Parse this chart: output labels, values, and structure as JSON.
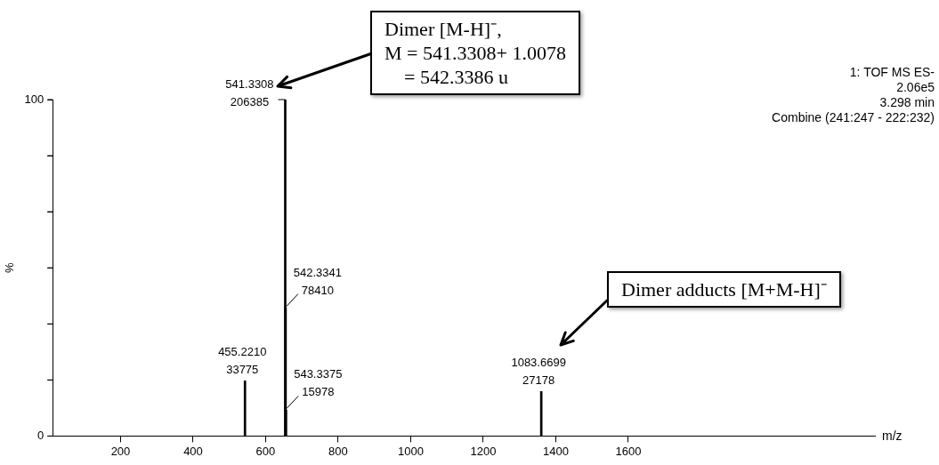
{
  "chart_data": {
    "type": "bar",
    "xlabel": "m/z",
    "ylabel": "%",
    "x": [
      543,
      654,
      655,
      656,
      1360
    ],
    "values": [
      16.4,
      100,
      38.0,
      7.7,
      13.2
    ],
    "color": "#000000",
    "xlim": [
      13,
      2280
    ],
    "xticks": [
      200,
      400,
      600,
      800,
      1000,
      1200,
      1400,
      1600
    ],
    "ylim": [
      0,
      100
    ],
    "yticks": [
      0,
      {
        "value": 16.67,
        "label": null
      },
      {
        "value": 33.33,
        "label": null
      },
      {
        "value": 50,
        "label": null
      },
      {
        "value": 66.67,
        "label": null
      },
      {
        "value": 83.33,
        "label": null
      },
      100
    ],
    "grid": false,
    "legend": false,
    "annotations": [
      "Dimer [M-H]⁻,\nM = 541.3308+ 1.0078\n    = 542.3386 u",
      "Dimer adducts [M+M-H]⁻",
      "1: TOF MS ES-\n2.06e5\n3.298 min\nCombine (241:247 - 222:232)",
      {
        "text": "455.2210\n33775",
        "x": 543,
        "y": 16.4
      },
      {
        "text": "541.3308\n206385",
        "x": 654,
        "y": 100
      },
      {
        "text": "542.3341\n78410",
        "x": 655,
        "y": 38.0
      },
      {
        "text": "543.3375\n15978",
        "x": 656,
        "y": 7.7
      },
      {
        "text": "1083.6699\n27178",
        "x": 1360,
        "y": 13.2
      }
    ]
  }
}
